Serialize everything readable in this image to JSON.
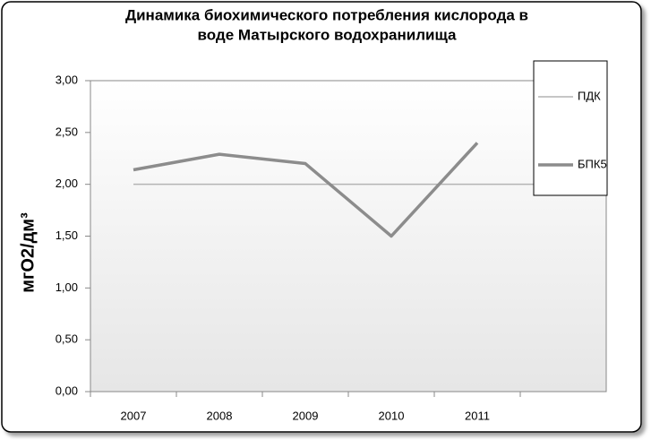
{
  "chart_data": {
    "type": "line",
    "title": [
      "Динамика биохимического потребления кислорода в",
      "воде Матырского водохранилища"
    ],
    "y_label": "мгО2/дм³",
    "categories": [
      "2007",
      "2008",
      "2009",
      "2010",
      "2011",
      null
    ],
    "series": [
      {
        "name": "ПДК",
        "color": "#b4b4b4",
        "values": [
          2,
          2,
          2,
          2,
          2,
          2
        ]
      },
      {
        "name": "БПК5",
        "color": "#8c8c8c",
        "values": [
          2.14,
          2.29,
          2.2,
          1.5,
          2.4,
          null
        ]
      }
    ],
    "ylim": [
      0,
      3
    ],
    "yticks": [
      {
        "value": 0,
        "label": "0,00"
      },
      {
        "value": 0.5,
        "label": "0,50"
      },
      {
        "value": 1,
        "label": "1,00"
      },
      {
        "value": 1.5,
        "label": "1,50"
      },
      {
        "value": 2,
        "label": "2,00"
      },
      {
        "value": 2.5,
        "label": "2,50"
      },
      {
        "value": 3,
        "label": "3,00"
      }
    ],
    "grid": false
  }
}
